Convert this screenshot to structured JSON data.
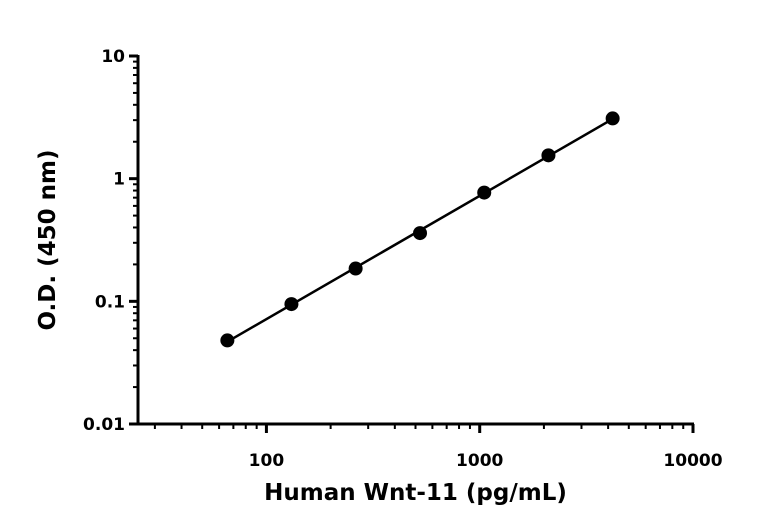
{
  "chart_data": {
    "type": "scatter",
    "title": "",
    "xlabel": "Human Wnt-11 (pg/mL)",
    "ylabel": "O.D. (450 nm)",
    "x_scale": "log",
    "y_scale": "log",
    "xlim": [
      25,
      10000
    ],
    "ylim": [
      0.01,
      10
    ],
    "x_ticks": [
      {
        "value": 100,
        "label": "100"
      },
      {
        "value": 1000,
        "label": "1000"
      },
      {
        "value": 10000,
        "label": "10000"
      }
    ],
    "y_ticks": [
      {
        "value": 0.01,
        "label": "0.01"
      },
      {
        "value": 0.1,
        "label": "0.1"
      },
      {
        "value": 1,
        "label": "1"
      },
      {
        "value": 10,
        "label": "10"
      }
    ],
    "grid": false,
    "legend": "none",
    "series": [
      {
        "color": "#000000",
        "fit_line": true,
        "points": [
          {
            "x": 65.6,
            "y": 0.048
          },
          {
            "x": 131,
            "y": 0.095
          },
          {
            "x": 262,
            "y": 0.185
          },
          {
            "x": 525,
            "y": 0.36
          },
          {
            "x": 1050,
            "y": 0.77
          },
          {
            "x": 2100,
            "y": 1.55
          },
          {
            "x": 4200,
            "y": 3.1
          }
        ]
      }
    ]
  }
}
